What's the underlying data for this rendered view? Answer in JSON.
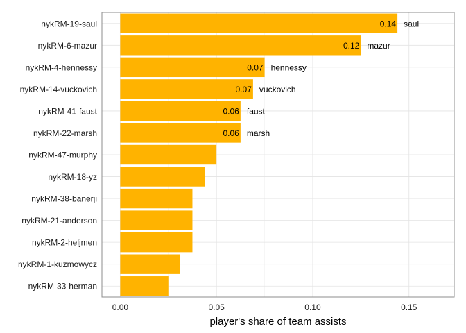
{
  "chart_data": {
    "type": "bar",
    "orientation": "horizontal",
    "xlabel": "player's share of team assists",
    "ylabel": "",
    "xlim": [
      -0.0095,
      0.1735
    ],
    "xticks": [
      0.0,
      0.05,
      0.1,
      0.15
    ],
    "xtick_labels": [
      "0.00",
      "0.05",
      "0.10",
      "0.15"
    ],
    "grid": true,
    "bar_color": "#FFB300",
    "categories": [
      "nykRM-19-saul",
      "nykRM-6-mazur",
      "nykRM-4-hennessy",
      "nykRM-14-vuckovich",
      "nykRM-41-faust",
      "nykRM-22-marsh",
      "nykRM-47-murphy",
      "nykRM-18-yz",
      "nykRM-38-banerji",
      "nykRM-21-anderson",
      "nykRM-2-heljmen",
      "nykRM-1-kuzmowycz",
      "nykRM-33-herman"
    ],
    "values": [
      0.144,
      0.125,
      0.075,
      0.069,
      0.0625,
      0.0625,
      0.05,
      0.044,
      0.0375,
      0.0375,
      0.0375,
      0.031,
      0.025
    ],
    "data_labels": [
      "0.14",
      "0.12",
      "0.07",
      "0.07",
      "0.06",
      "0.06",
      "",
      "",
      "",
      "",
      "",
      "",
      ""
    ],
    "name_labels": [
      "saul",
      "mazur",
      "hennessy",
      "vuckovich",
      "faust",
      "marsh",
      "",
      "",
      "",
      "",
      "",
      "",
      ""
    ]
  }
}
